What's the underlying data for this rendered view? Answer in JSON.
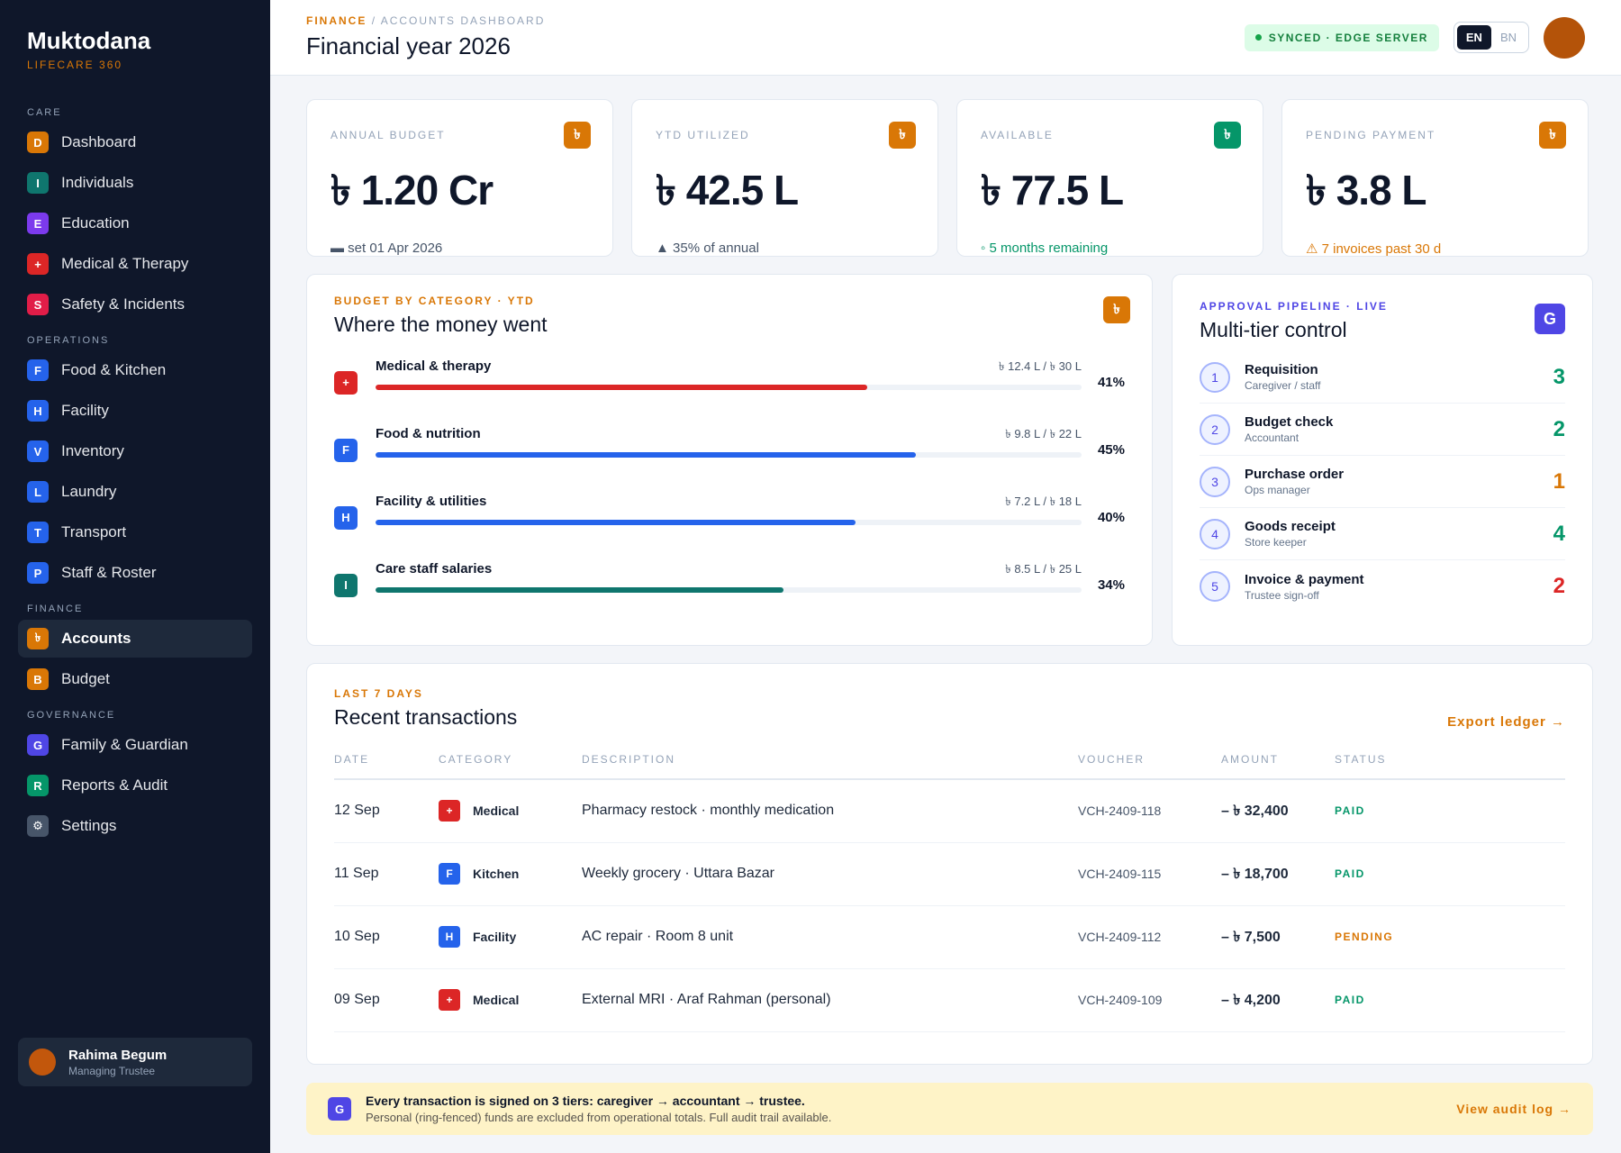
{
  "brand": {
    "name": "Muktodana",
    "sub": "LIFECARE 360"
  },
  "sidebar": {
    "sections": [
      {
        "title": "CARE",
        "items": [
          {
            "label": "Dashboard",
            "glyph": "D",
            "color": "#d97706"
          },
          {
            "label": "Individuals",
            "glyph": "I",
            "color": "#0f766e"
          },
          {
            "label": "Education",
            "glyph": "E",
            "color": "#7c3aed"
          },
          {
            "label": "Medical & Therapy",
            "glyph": "+",
            "color": "#dc2626"
          },
          {
            "label": "Safety & Incidents",
            "glyph": "S",
            "color": "#e11d48"
          }
        ]
      },
      {
        "title": "OPERATIONS",
        "items": [
          {
            "label": "Food & Kitchen",
            "glyph": "F",
            "color": "#2563eb"
          },
          {
            "label": "Facility",
            "glyph": "H",
            "color": "#2563eb"
          },
          {
            "label": "Inventory",
            "glyph": "V",
            "color": "#2563eb"
          },
          {
            "label": "Laundry",
            "glyph": "L",
            "color": "#2563eb"
          },
          {
            "label": "Transport",
            "glyph": "T",
            "color": "#2563eb"
          },
          {
            "label": "Staff & Roster",
            "glyph": "P",
            "color": "#2563eb"
          }
        ]
      },
      {
        "title": "FINANCE",
        "items": [
          {
            "label": "Accounts",
            "glyph": "৳",
            "color": "#d97706",
            "active": true
          },
          {
            "label": "Budget",
            "glyph": "B",
            "color": "#d97706"
          }
        ]
      },
      {
        "title": "GOVERNANCE",
        "items": [
          {
            "label": "Family & Guardian",
            "glyph": "G",
            "color": "#4f46e5"
          },
          {
            "label": "Reports & Audit",
            "glyph": "R",
            "color": "#059669"
          },
          {
            "label": "Settings",
            "glyph": "⚙",
            "color": "#475569"
          }
        ]
      }
    ],
    "user": {
      "name": "Rahima Begum",
      "role": "Managing Trustee"
    }
  },
  "header": {
    "crumb1": "FINANCE",
    "crumb2": "ACCOUNTS DASHBOARD",
    "title": "Financial year 2026",
    "sync": "SYNCED · EDGE SERVER",
    "lang_en": "EN",
    "lang_bn": "BN"
  },
  "kpis": [
    {
      "label": "ANNUAL BUDGET",
      "value": "৳ 1.20 Cr",
      "note": "▬ set 01 Apr 2026",
      "tone": "",
      "badge": "৳",
      "badge_color": "#d97706"
    },
    {
      "label": "YTD UTILIZED",
      "value": "৳ 42.5 L",
      "note": "▲ 35% of annual",
      "tone": "",
      "badge": "৳",
      "badge_color": "#d97706"
    },
    {
      "label": "AVAILABLE",
      "value": "৳ 77.5 L",
      "note": "◦ 5 months remaining",
      "tone": "green",
      "badge": "৳",
      "badge_color": "#059669"
    },
    {
      "label": "PENDING PAYMENT",
      "value": "৳ 3.8 L",
      "note": "⚠ 7 invoices past 30 d",
      "tone": "orange",
      "badge": "৳",
      "badge_color": "#d97706"
    }
  ],
  "budget": {
    "eyebrow": "BUDGET BY CATEGORY · YTD",
    "title": "Where the money went",
    "badge": "৳",
    "rows": [
      {
        "name": "Medical & therapy",
        "amount": "৳ 12.4 L / ৳ 30 L",
        "pct": "41%",
        "fill": 0.41,
        "glyph": "+",
        "color": "#dc2626"
      },
      {
        "name": "Food & nutrition",
        "amount": "৳ 9.8 L / ৳ 22 L",
        "pct": "45%",
        "fill": 0.45,
        "glyph": "F",
        "color": "#2563eb"
      },
      {
        "name": "Facility & utilities",
        "amount": "৳ 7.2 L / ৳ 18 L",
        "pct": "40%",
        "fill": 0.4,
        "glyph": "H",
        "color": "#2563eb"
      },
      {
        "name": "Care staff salaries",
        "amount": "৳ 8.5 L / ৳ 25 L",
        "pct": "34%",
        "fill": 0.34,
        "glyph": "I",
        "color": "#0f766e"
      }
    ]
  },
  "pipeline": {
    "eyebrow": "APPROVAL PIPELINE · LIVE",
    "title": "Multi-tier control",
    "badge": "G",
    "steps": [
      {
        "n": "1",
        "name": "Requisition",
        "sub": "Caregiver / staff",
        "count": "3",
        "color": "#059669"
      },
      {
        "n": "2",
        "name": "Budget check",
        "sub": "Accountant",
        "count": "2",
        "color": "#059669"
      },
      {
        "n": "3",
        "name": "Purchase order",
        "sub": "Ops manager",
        "count": "1",
        "color": "#d97706"
      },
      {
        "n": "4",
        "name": "Goods receipt",
        "sub": "Store keeper",
        "count": "4",
        "color": "#059669"
      },
      {
        "n": "5",
        "name": "Invoice & payment",
        "sub": "Trustee sign-off",
        "count": "2",
        "color": "#dc2626"
      }
    ]
  },
  "transactions": {
    "eyebrow": "LAST 7 DAYS",
    "title": "Recent transactions",
    "export": "Export ledger →",
    "headers": [
      "DATE",
      "CATEGORY",
      "DESCRIPTION",
      "VOUCHER",
      "AMOUNT",
      "STATUS"
    ],
    "rows": [
      {
        "date": "12 Sep",
        "cat": "Medical",
        "glyph": "+",
        "color": "#dc2626",
        "desc": "Pharmacy restock · monthly medication",
        "vch": "VCH-2409-118",
        "amount": "– ৳ 32,400",
        "status": "PAID",
        "st": "paid"
      },
      {
        "date": "11 Sep",
        "cat": "Kitchen",
        "glyph": "F",
        "color": "#2563eb",
        "desc": "Weekly grocery · Uttara Bazar",
        "vch": "VCH-2409-115",
        "amount": "– ৳ 18,700",
        "status": "PAID",
        "st": "paid"
      },
      {
        "date": "10 Sep",
        "cat": "Facility",
        "glyph": "H",
        "color": "#2563eb",
        "desc": "AC repair · Room 8 unit",
        "vch": "VCH-2409-112",
        "amount": "– ৳ 7,500",
        "status": "PENDING",
        "st": "pending"
      },
      {
        "date": "09 Sep",
        "cat": "Medical",
        "glyph": "+",
        "color": "#dc2626",
        "desc": "External MRI · Araf Rahman (personal)",
        "vch": "VCH-2409-109",
        "amount": "– ৳ 4,200",
        "status": "PAID",
        "st": "paid"
      }
    ]
  },
  "note": {
    "badge": "G",
    "main": "Every transaction is signed on 3 tiers: caregiver → accountant → trustee.",
    "sub": "Personal (ring-fenced) funds are excluded from operational totals. Full audit trail available.",
    "link": "View audit log →"
  }
}
